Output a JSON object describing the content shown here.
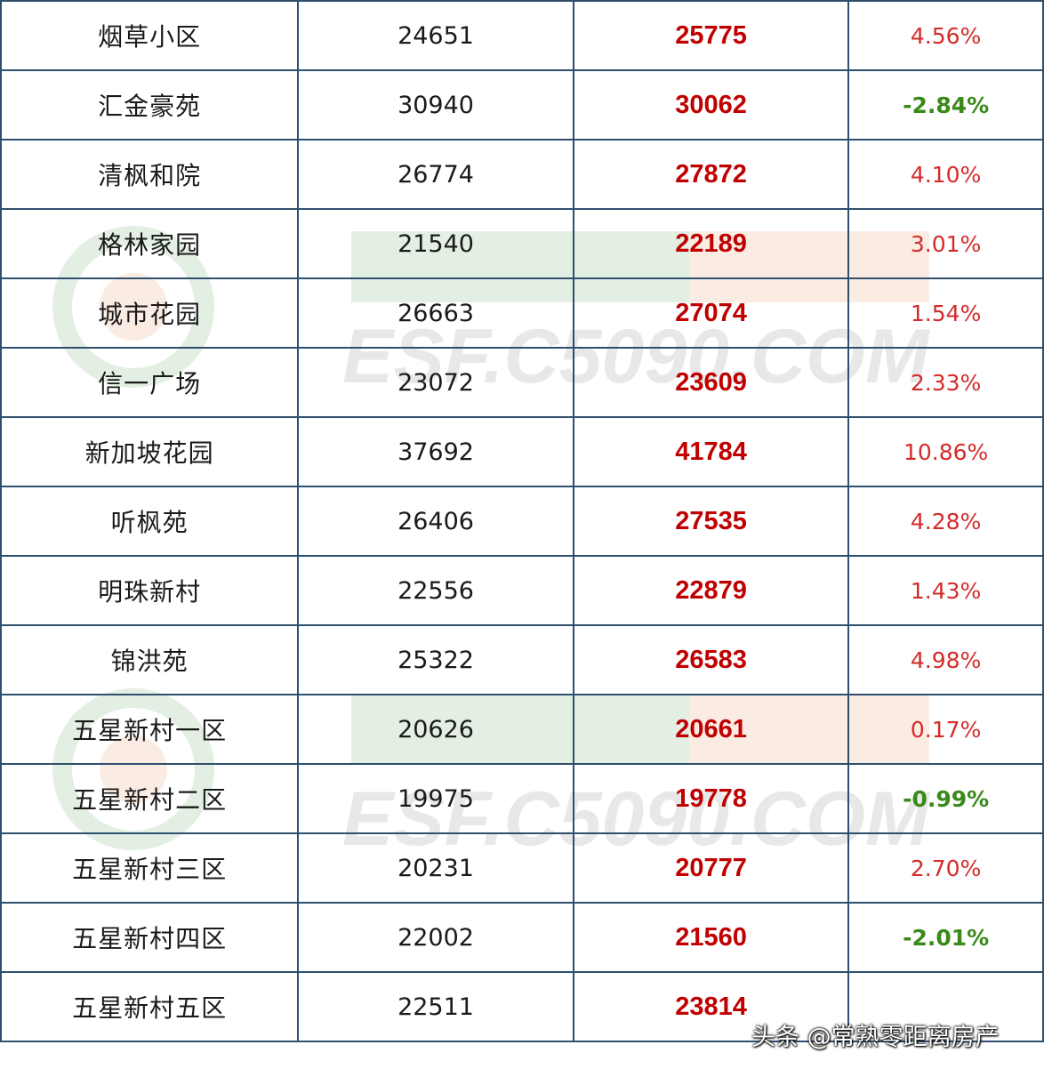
{
  "watermark": {
    "text": "ESF.C5090.COM",
    "colors": [
      "#2e8b2e",
      "#e8772e",
      "#555555"
    ]
  },
  "rows": [
    {
      "name": "烟草小区",
      "old": "24651",
      "new": "25775",
      "change": "4.56%",
      "dir": "up"
    },
    {
      "name": "汇金豪苑",
      "old": "30940",
      "new": "30062",
      "change": "-2.84%",
      "dir": "down"
    },
    {
      "name": "清枫和院",
      "old": "26774",
      "new": "27872",
      "change": "4.10%",
      "dir": "up"
    },
    {
      "name": "格林家园",
      "old": "21540",
      "new": "22189",
      "change": "3.01%",
      "dir": "up"
    },
    {
      "name": "城市花园",
      "old": "26663",
      "new": "27074",
      "change": "1.54%",
      "dir": "up"
    },
    {
      "name": "信一广场",
      "old": "23072",
      "new": "23609",
      "change": "2.33%",
      "dir": "up"
    },
    {
      "name": "新加坡花园",
      "old": "37692",
      "new": "41784",
      "change": "10.86%",
      "dir": "up"
    },
    {
      "name": "听枫苑",
      "old": "26406",
      "new": "27535",
      "change": "4.28%",
      "dir": "up"
    },
    {
      "name": "明珠新村",
      "old": "22556",
      "new": "22879",
      "change": "1.43%",
      "dir": "up"
    },
    {
      "name": "锦洪苑",
      "old": "25322",
      "new": "26583",
      "change": "4.98%",
      "dir": "up"
    },
    {
      "name": "五星新村一区",
      "old": "20626",
      "new": "20661",
      "change": "0.17%",
      "dir": "up"
    },
    {
      "name": "五星新村二区",
      "old": "19975",
      "new": "19778",
      "change": "-0.99%",
      "dir": "down"
    },
    {
      "name": "五星新村三区",
      "old": "20231",
      "new": "20777",
      "change": "2.70%",
      "dir": "up"
    },
    {
      "name": "五星新村四区",
      "old": "22002",
      "new": "21560",
      "change": "-2.01%",
      "dir": "down"
    },
    {
      "name": "五星新村五区",
      "old": "22511",
      "new": "23814",
      "change": "",
      "dir": "up"
    }
  ],
  "credit": "头条 @常熟零距离房产"
}
